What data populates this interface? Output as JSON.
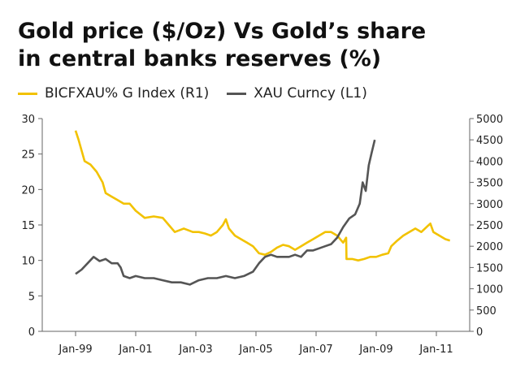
{
  "header": {
    "title_line1": "Gold price ($/Oz) Vs Gold’s share",
    "title_line2": "in central banks reserves (%)"
  },
  "legend": [
    {
      "label": "BICFXAU% G Index (R1)",
      "color": "#f2c200"
    },
    {
      "label": "XAU Curncy (L1)",
      "color": "#555555"
    }
  ],
  "chart_data": {
    "type": "line",
    "title": "Gold price ($/Oz) Vs Gold’s share in central banks reserves (%)",
    "x_labels": [
      "Jan-99",
      "Jan-01",
      "Jan-03",
      "Jan-05",
      "Jan-07",
      "Jan-09",
      "Jan-11"
    ],
    "x_range": [
      1999.0,
      2011.0
    ],
    "left_axis": {
      "ticks": [
        0,
        5,
        10,
        15,
        20,
        25,
        30
      ],
      "range": [
        0,
        30
      ]
    },
    "right_axis": {
      "ticks": [
        0,
        500,
        1000,
        1500,
        2000,
        2500,
        3000,
        3500,
        4000,
        4500,
        5000
      ],
      "range": [
        0,
        5000
      ]
    },
    "series": [
      {
        "name": "BICFXAU% G Index (R1)",
        "axis": "left",
        "color": "#f2c200",
        "points": [
          [
            1999.0,
            28.3
          ],
          [
            1999.1,
            27.0
          ],
          [
            1999.2,
            25.5
          ],
          [
            1999.3,
            24.0
          ],
          [
            1999.5,
            23.5
          ],
          [
            1999.7,
            22.5
          ],
          [
            1999.9,
            21.0
          ],
          [
            2000.0,
            19.5
          ],
          [
            2000.2,
            19.0
          ],
          [
            2000.4,
            18.5
          ],
          [
            2000.6,
            18.0
          ],
          [
            2000.8,
            18.0
          ],
          [
            2001.0,
            17.0
          ],
          [
            2001.3,
            16.0
          ],
          [
            2001.6,
            16.2
          ],
          [
            2001.9,
            16.0
          ],
          [
            2002.1,
            15.0
          ],
          [
            2002.3,
            14.0
          ],
          [
            2002.6,
            14.5
          ],
          [
            2002.9,
            14.0
          ],
          [
            2003.1,
            14.0
          ],
          [
            2003.3,
            13.8
          ],
          [
            2003.5,
            13.5
          ],
          [
            2003.7,
            14.0
          ],
          [
            2003.9,
            15.0
          ],
          [
            2004.0,
            15.8
          ],
          [
            2004.1,
            14.5
          ],
          [
            2004.3,
            13.5
          ],
          [
            2004.5,
            13.0
          ],
          [
            2004.7,
            12.5
          ],
          [
            2004.9,
            12.0
          ],
          [
            2005.1,
            11.0
          ],
          [
            2005.3,
            10.8
          ],
          [
            2005.5,
            11.2
          ],
          [
            2005.7,
            11.8
          ],
          [
            2005.9,
            12.2
          ],
          [
            2006.1,
            12.0
          ],
          [
            2006.3,
            11.5
          ],
          [
            2006.5,
            12.0
          ],
          [
            2006.7,
            12.5
          ],
          [
            2006.9,
            13.0
          ],
          [
            2007.1,
            13.5
          ],
          [
            2007.3,
            14.0
          ],
          [
            2007.5,
            14.0
          ],
          [
            2007.7,
            13.5
          ],
          [
            2007.9,
            12.5
          ],
          [
            2008.0,
            13.2
          ],
          [
            2008.01,
            10.2
          ],
          [
            2008.2,
            10.2
          ],
          [
            2008.4,
            10.0
          ],
          [
            2008.6,
            10.2
          ],
          [
            2008.8,
            10.5
          ],
          [
            2009.0,
            10.5
          ],
          [
            2009.2,
            10.8
          ],
          [
            2009.4,
            11.0
          ],
          [
            2009.5,
            12.0
          ],
          [
            2009.7,
            12.8
          ],
          [
            2009.9,
            13.5
          ],
          [
            2010.1,
            14.0
          ],
          [
            2010.3,
            14.5
          ],
          [
            2010.5,
            14.0
          ],
          [
            2010.7,
            14.8
          ],
          [
            2010.8,
            15.2
          ],
          [
            2010.9,
            14.0
          ],
          [
            2011.1,
            13.5
          ],
          [
            2011.3,
            13.0
          ],
          [
            2011.45,
            12.8
          ]
        ]
      },
      {
        "name": "XAU Curncy (L1)",
        "axis": "right",
        "color": "#555555",
        "points": [
          [
            1999.0,
            1350
          ],
          [
            1999.2,
            1450
          ],
          [
            1999.4,
            1600
          ],
          [
            1999.6,
            1750
          ],
          [
            1999.8,
            1650
          ],
          [
            2000.0,
            1700
          ],
          [
            2000.2,
            1600
          ],
          [
            2000.4,
            1600
          ],
          [
            2000.5,
            1500
          ],
          [
            2000.6,
            1300
          ],
          [
            2000.8,
            1250
          ],
          [
            2001.0,
            1300
          ],
          [
            2001.3,
            1250
          ],
          [
            2001.6,
            1250
          ],
          [
            2001.9,
            1200
          ],
          [
            2002.2,
            1150
          ],
          [
            2002.5,
            1150
          ],
          [
            2002.8,
            1100
          ],
          [
            2003.1,
            1200
          ],
          [
            2003.4,
            1250
          ],
          [
            2003.7,
            1250
          ],
          [
            2004.0,
            1300
          ],
          [
            2004.3,
            1250
          ],
          [
            2004.6,
            1300
          ],
          [
            2004.9,
            1400
          ],
          [
            2005.1,
            1600
          ],
          [
            2005.3,
            1750
          ],
          [
            2005.5,
            1800
          ],
          [
            2005.7,
            1750
          ],
          [
            2005.9,
            1750
          ],
          [
            2006.1,
            1750
          ],
          [
            2006.3,
            1800
          ],
          [
            2006.5,
            1750
          ],
          [
            2006.7,
            1900
          ],
          [
            2006.9,
            1900
          ],
          [
            2007.1,
            1950
          ],
          [
            2007.3,
            2000
          ],
          [
            2007.5,
            2050
          ],
          [
            2007.7,
            2200
          ],
          [
            2007.9,
            2450
          ],
          [
            2008.1,
            2650
          ],
          [
            2008.3,
            2750
          ],
          [
            2008.45,
            3000
          ],
          [
            2008.55,
            3500
          ],
          [
            2008.65,
            3300
          ],
          [
            2008.75,
            3900
          ],
          [
            2008.85,
            4200
          ],
          [
            2008.95,
            4500
          ]
        ]
      }
    ]
  }
}
